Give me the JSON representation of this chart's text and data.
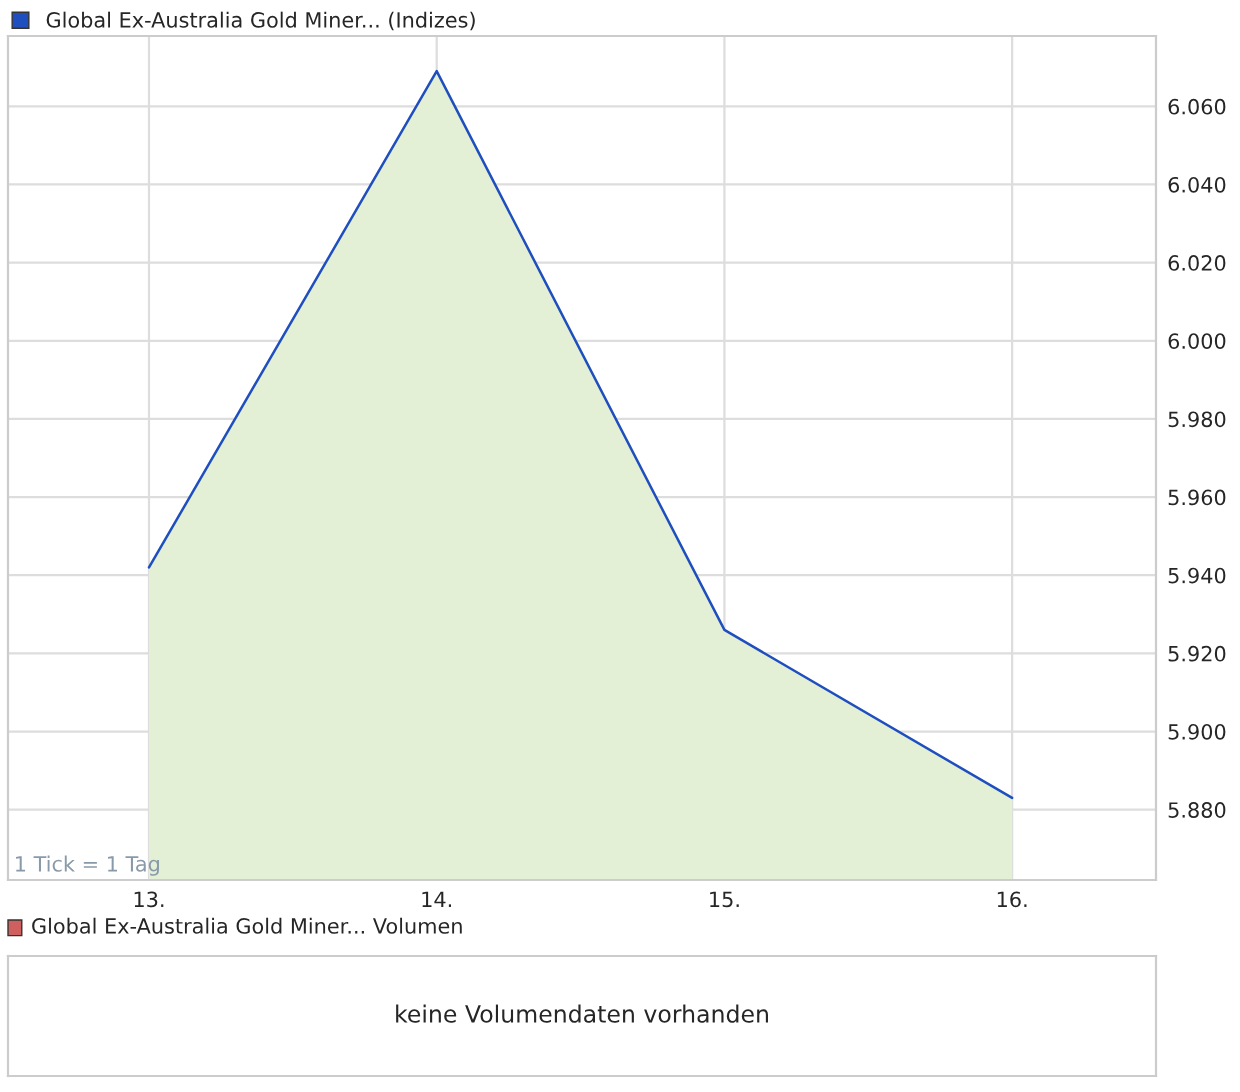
{
  "chart_data": [
    {
      "type": "area",
      "x": [
        13,
        14,
        15,
        16
      ],
      "series": [
        {
          "name": "Global Ex-Australia Gold Miner... (Indizes)",
          "color": "#1f4fbf",
          "values": [
            5942,
            6069,
            5926,
            5883
          ]
        }
      ],
      "xlim": [
        12.51,
        16.5
      ],
      "xticks": [
        {
          "value": 13,
          "label": "13."
        },
        {
          "value": 14,
          "label": "14."
        },
        {
          "value": 15,
          "label": "15."
        },
        {
          "value": 16,
          "label": "16."
        }
      ],
      "ylim": [
        5862,
        6078
      ],
      "yticks": [
        {
          "value": 5880,
          "label": "5.880"
        },
        {
          "value": 5900,
          "label": "5.900"
        },
        {
          "value": 5920,
          "label": "5.920"
        },
        {
          "value": 5940,
          "label": "5.940"
        },
        {
          "value": 5960,
          "label": "5.960"
        },
        {
          "value": 5980,
          "label": "5.980"
        },
        {
          "value": 6000,
          "label": "6.000"
        },
        {
          "value": 6020,
          "label": "6.020"
        },
        {
          "value": 6040,
          "label": "6.040"
        },
        {
          "value": 6060,
          "label": "6.060"
        }
      ],
      "grid": true,
      "legend": "top left",
      "annotations": [
        "1 Tick = 1 Tag"
      ]
    },
    {
      "type": "other",
      "title": "Global Ex-Australia Gold Miner... Volumen",
      "annotations": [
        "keine Volumendaten vorhanden"
      ]
    }
  ]
}
